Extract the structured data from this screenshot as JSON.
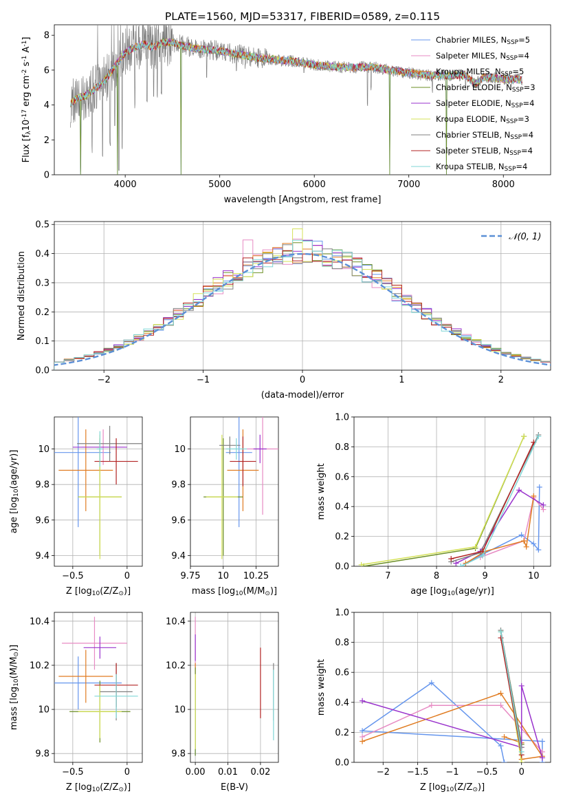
{
  "figure": {
    "title": "PLATE=1560, MJD=53317, FIBERID=0589, z=0.115"
  },
  "colors": {
    "Chabrier MILES": "#6495ed",
    "Salpeter MILES": "#e78ac3",
    "Kroupa MILES": "#e07b20",
    "Chabrier ELODIE": "#6b8e23",
    "Salpeter ELODIE": "#9932cc",
    "Kroupa ELODIE": "#d4e157",
    "Chabrier STELIB": "#808080",
    "Salpeter STELIB": "#b22222",
    "Kroupa STELIB": "#7fd6d6",
    "normal": "#5b8fd6"
  },
  "chart_data": [
    {
      "id": "spectrum",
      "type": "line",
      "xlabel": "wavelength [Angstrom, rest frame]",
      "ylabel": "Flux [f$_\\lambda$10$^{-17}$ erg cm$^{-2}$ s$^{-1}$ A$^{-1}$]",
      "xlim": [
        3250,
        8500
      ],
      "ylim": [
        0,
        8.6
      ],
      "xticks": [
        4000,
        5000,
        6000,
        7000,
        8000
      ],
      "yticks": [
        0,
        2,
        4,
        6,
        8
      ],
      "grid": false,
      "legend_position": "top-right",
      "continuum": [
        [
          3420,
          4.1
        ],
        [
          3500,
          4.4
        ],
        [
          3600,
          4.6
        ],
        [
          3700,
          5.0
        ],
        [
          3800,
          5.5
        ],
        [
          3900,
          6.3
        ],
        [
          4000,
          7.0
        ],
        [
          4100,
          7.3
        ],
        [
          4200,
          7.5
        ],
        [
          4300,
          7.3
        ],
        [
          4400,
          7.6
        ],
        [
          4500,
          7.6
        ],
        [
          4600,
          7.4
        ],
        [
          4800,
          7.2
        ],
        [
          5000,
          7.1
        ],
        [
          5200,
          6.9
        ],
        [
          5400,
          6.7
        ],
        [
          5600,
          6.6
        ],
        [
          5800,
          6.5
        ],
        [
          6000,
          6.3
        ],
        [
          6200,
          6.2
        ],
        [
          6400,
          6.15
        ],
        [
          6600,
          6.2
        ],
        [
          6800,
          6.0
        ],
        [
          7000,
          5.85
        ],
        [
          7200,
          5.7
        ],
        [
          7400,
          5.7
        ],
        [
          7600,
          5.7
        ],
        [
          7700,
          5.2
        ],
        [
          7800,
          5.6
        ],
        [
          8000,
          5.5
        ],
        [
          8200,
          5.45
        ]
      ],
      "observed_dips": [
        [
          3530,
          0.0
        ],
        [
          3650,
          1.2
        ],
        [
          3760,
          0.6
        ],
        [
          3840,
          1.6
        ],
        [
          3890,
          2.4
        ],
        [
          3933,
          0.2
        ],
        [
          3968,
          1.4
        ],
        [
          4102,
          3.6
        ],
        [
          4230,
          3.9
        ],
        [
          4300,
          4.2
        ],
        [
          4340,
          4.4
        ],
        [
          4383,
          4.6
        ],
        [
          4861,
          5.1
        ],
        [
          5176,
          5.6
        ],
        [
          5270,
          6.0
        ],
        [
          5890,
          5.5
        ],
        [
          6563,
          3.6
        ],
        [
          6600,
          4.8
        ],
        [
          7250,
          4.6
        ],
        [
          7600,
          4.8
        ]
      ],
      "model_dips": [
        [
          3530,
          0.0
        ],
        [
          3920,
          0.0
        ],
        [
          4590,
          0.0
        ],
        [
          6800,
          0.0
        ],
        [
          7400,
          0.0
        ]
      ],
      "series": [
        {
          "name": "Chabrier MILES, N$_{SSP}$=5"
        },
        {
          "name": "Salpeter MILES, N$_{SSP}$=4"
        },
        {
          "name": "Kroupa MILES, N$_{SSP}$=5"
        },
        {
          "name": "Chabrier ELODIE, N$_{SSP}$=3"
        },
        {
          "name": "Salpeter ELODIE, N$_{SSP}$=4"
        },
        {
          "name": "Kroupa ELODIE, N$_{SSP}$=3"
        },
        {
          "name": "Chabrier STELIB, N$_{SSP}$=4"
        },
        {
          "name": "Salpeter STELIB, N$_{SSP}$=4"
        },
        {
          "name": "Kroupa STELIB, N$_{SSP}$=4"
        }
      ]
    },
    {
      "id": "residuals",
      "type": "line",
      "xlabel": "(data-model)/error",
      "ylabel": "Normed distribution",
      "xlim": [
        -2.5,
        2.5
      ],
      "ylim": [
        0,
        0.51
      ],
      "xticks": [
        -2,
        -1,
        0,
        1,
        2
      ],
      "yticks": [
        0.0,
        0.1,
        0.2,
        0.3,
        0.4,
        0.5
      ],
      "grid": true,
      "legend_position": "top-right",
      "legend": "$\\mathcal{N}(0, 1)$",
      "bin_width": 0.1,
      "bin_start": -2.5
    },
    {
      "id": "age-Z",
      "type": "scatter",
      "xlabel": "Z [log$_{10}$(Z/Z$_\\odot$)]",
      "ylabel": "age  [log$_{10}$(age/yr)]",
      "xlim": [
        -0.67,
        0.14
      ],
      "ylim": [
        9.34,
        10.18
      ],
      "xticks": [
        -0.5,
        0.0
      ],
      "yticks": [
        9.4,
        9.6,
        9.8,
        10.0
      ],
      "grid": true,
      "points": [
        {
          "model": "Chabrier MILES",
          "x": -0.45,
          "xerr": 0.3,
          "y": 9.98,
          "yerr": 0.42
        },
        {
          "model": "Salpeter MILES",
          "x": -0.22,
          "xerr": 0.2,
          "y": 10.01,
          "yerr": 0.1
        },
        {
          "model": "Kroupa MILES",
          "x": -0.38,
          "xerr": 0.25,
          "y": 9.88,
          "yerr": 0.23
        },
        {
          "model": "Chabrier ELODIE",
          "x": -0.25,
          "xerr": 0.2,
          "y": 9.73,
          "yerr": 0.33
        },
        {
          "model": "Salpeter ELODIE",
          "x": -0.25,
          "xerr": 0.25,
          "y": 10.01,
          "yerr": 0.03
        },
        {
          "model": "Kroupa ELODIE",
          "x": -0.25,
          "xerr": 0.2,
          "y": 9.73,
          "yerr": 0.35
        },
        {
          "model": "Chabrier STELIB",
          "x": -0.16,
          "xerr": 0.3,
          "y": 10.03,
          "yerr": 0.1
        },
        {
          "model": "Salpeter STELIB",
          "x": -0.1,
          "xerr": 0.2,
          "y": 9.93,
          "yerr": 0.13
        },
        {
          "model": "Kroupa STELIB",
          "x": -0.25,
          "xerr": 0.03,
          "y": 10.0,
          "yerr": 0.1
        }
      ]
    },
    {
      "id": "age-mass",
      "type": "scatter",
      "xlabel": "mass [log$_{10}$(M/M$_\\odot$)]",
      "ylabel": "",
      "xlim": [
        9.75,
        10.42
      ],
      "ylim": [
        9.34,
        10.18
      ],
      "xticks": [
        9.75,
        10.0,
        10.25
      ],
      "yticks": [
        9.4,
        9.6,
        9.8,
        10.0
      ],
      "grid": true,
      "points": [
        {
          "model": "Chabrier MILES",
          "x": 10.12,
          "xerr": 0.1,
          "y": 9.98,
          "yerr": 0.42
        },
        {
          "model": "Salpeter MILES",
          "x": 10.3,
          "xerr": 0.12,
          "y": 10.0,
          "yerr": 0.37
        },
        {
          "model": "Kroupa MILES",
          "x": 10.15,
          "xerr": 0.12,
          "y": 9.88,
          "yerr": 0.23
        },
        {
          "model": "Chabrier ELODIE",
          "x": 10.0,
          "xerr": 0.15,
          "y": 9.73,
          "yerr": 0.33
        },
        {
          "model": "Salpeter ELODIE",
          "x": 10.28,
          "xerr": 0.05,
          "y": 10.0,
          "yerr": 0.08
        },
        {
          "model": "Kroupa ELODIE",
          "x": 9.99,
          "xerr": 0.12,
          "y": 9.73,
          "yerr": 0.35
        },
        {
          "model": "Chabrier STELIB",
          "x": 10.05,
          "xerr": 0.08,
          "y": 10.02,
          "yerr": 0.05
        },
        {
          "model": "Salpeter STELIB",
          "x": 10.15,
          "xerr": 0.1,
          "y": 9.93,
          "yerr": 0.14
        },
        {
          "model": "Kroupa STELIB",
          "x": 10.1,
          "xerr": 0.08,
          "y": 10.0,
          "yerr": 0.06
        }
      ]
    },
    {
      "id": "mw-age",
      "type": "line",
      "xlabel": "age  [log$_{10}$(age/yr)]",
      "ylabel": "mass weight",
      "xlim": [
        6.3,
        10.35
      ],
      "ylim": [
        0,
        1.0
      ],
      "xticks": [
        7,
        8,
        9,
        10
      ],
      "yticks": [
        0.0,
        0.2,
        0.4,
        0.6,
        0.8,
        1.0
      ],
      "grid": true,
      "series": [
        {
          "model": "Chabrier MILES",
          "points": [
            [
              8.5,
              0.0
            ],
            [
              8.95,
              0.08
            ],
            [
              9.75,
              0.21
            ],
            [
              10.0,
              0.15
            ],
            [
              10.1,
              0.11
            ],
            [
              10.12,
              0.53
            ]
          ]
        },
        {
          "model": "Salpeter MILES",
          "points": [
            [
              8.9,
              0.06
            ],
            [
              9.8,
              0.17
            ],
            [
              10.0,
              0.46
            ],
            [
              10.2,
              0.38
            ]
          ]
        },
        {
          "model": "Kroupa MILES",
          "points": [
            [
              8.6,
              0.02
            ],
            [
              9.0,
              0.1
            ],
            [
              9.8,
              0.17
            ],
            [
              9.85,
              0.13
            ],
            [
              10.0,
              0.47
            ]
          ]
        },
        {
          "model": "Chabrier ELODIE",
          "points": [
            [
              6.5,
              0.0
            ],
            [
              8.8,
              0.12
            ],
            [
              9.8,
              0.87
            ]
          ]
        },
        {
          "model": "Salpeter ELODIE",
          "points": [
            [
              8.4,
              0.02
            ],
            [
              8.9,
              0.1
            ],
            [
              9.7,
              0.51
            ],
            [
              10.2,
              0.41
            ]
          ]
        },
        {
          "model": "Kroupa ELODIE",
          "points": [
            [
              6.45,
              0.01
            ],
            [
              8.8,
              0.13
            ],
            [
              9.8,
              0.87
            ]
          ]
        },
        {
          "model": "Chabrier STELIB",
          "points": [
            [
              8.3,
              0.03
            ],
            [
              8.9,
              0.09
            ],
            [
              10.1,
              0.88
            ]
          ]
        },
        {
          "model": "Salpeter STELIB",
          "points": [
            [
              8.3,
              0.05
            ],
            [
              8.95,
              0.1
            ],
            [
              10.0,
              0.83
            ]
          ]
        },
        {
          "model": "Kroupa STELIB",
          "points": [
            [
              8.5,
              0.0
            ],
            [
              8.95,
              0.07
            ],
            [
              10.1,
              0.87
            ]
          ]
        }
      ]
    },
    {
      "id": "mass-Z",
      "type": "scatter",
      "xlabel": "Z [log$_{10}$(Z/Z$_\\odot$)]",
      "ylabel": "mass [log$_{10}$(M/M$_\\odot$)]",
      "xlim": [
        -0.67,
        0.14
      ],
      "ylim": [
        9.76,
        10.44
      ],
      "xticks": [
        -0.5,
        0.0
      ],
      "yticks": [
        9.8,
        10.0,
        10.2,
        10.4
      ],
      "grid": true,
      "points": [
        {
          "model": "Chabrier MILES",
          "x": -0.45,
          "xerr": 0.4,
          "y": 10.12,
          "yerr": 0.12
        },
        {
          "model": "Salpeter MILES",
          "x": -0.3,
          "xerr": 0.3,
          "y": 10.3,
          "yerr": 0.12
        },
        {
          "model": "Kroupa MILES",
          "x": -0.38,
          "xerr": 0.25,
          "y": 10.15,
          "yerr": 0.12
        },
        {
          "model": "Chabrier ELODIE",
          "x": -0.25,
          "xerr": 0.28,
          "y": 9.99,
          "yerr": 0.14
        },
        {
          "model": "Salpeter ELODIE",
          "x": -0.25,
          "xerr": 0.15,
          "y": 10.28,
          "yerr": 0.05
        },
        {
          "model": "Kroupa ELODIE",
          "x": -0.25,
          "xerr": 0.2,
          "y": 9.99,
          "yerr": 0.12
        },
        {
          "model": "Chabrier STELIB",
          "x": -0.1,
          "xerr": 0.15,
          "y": 10.08,
          "yerr": 0.13
        },
        {
          "model": "Salpeter STELIB",
          "x": -0.1,
          "xerr": 0.2,
          "y": 10.11,
          "yerr": 0.1
        },
        {
          "model": "Kroupa STELIB",
          "x": -0.1,
          "xerr": 0.2,
          "y": 10.06,
          "yerr": 0.1
        }
      ]
    },
    {
      "id": "mass-ebv",
      "type": "scatter",
      "xlabel": "E(B-V)",
      "ylabel": "",
      "xlim": [
        -0.0015,
        0.0255
      ],
      "ylim": [
        9.76,
        10.44
      ],
      "xticks": [
        0.0,
        0.01,
        0.02
      ],
      "xtick_labels": [
        "0.00",
        "0.01",
        "0.02"
      ],
      "yticks": [
        9.8,
        10.0,
        10.2,
        10.4
      ],
      "grid": true,
      "points": [
        {
          "model": "Chabrier MILES",
          "x": 0.0,
          "y": 9.96,
          "yerr": 0.17
        },
        {
          "model": "Salpeter MILES",
          "x": 0.0,
          "y": 10.3,
          "yerr": 0.12
        },
        {
          "model": "Kroupa MILES",
          "x": 0.0,
          "y": 10.15,
          "yerr": 0.06
        },
        {
          "model": "Chabrier ELODIE",
          "x": 0.0,
          "y": 9.99,
          "yerr": 0.2
        },
        {
          "model": "Salpeter ELODIE",
          "x": 0.0,
          "y": 10.28,
          "yerr": 0.06
        },
        {
          "model": "Kroupa ELODIE",
          "x": 0.0,
          "y": 9.99,
          "yerr": 0.17
        },
        {
          "model": "Chabrier STELIB",
          "x": 0.024,
          "y": 10.08,
          "yerr": 0.13
        },
        {
          "model": "Salpeter STELIB",
          "x": 0.02,
          "y": 10.12,
          "yerr": 0.16
        },
        {
          "model": "Kroupa STELIB",
          "x": 0.024,
          "y": 10.02,
          "yerr": 0.16
        }
      ]
    },
    {
      "id": "mw-Z",
      "type": "line",
      "xlabel": "Z [log$_{10}$(Z/Z$_\\odot$)]",
      "ylabel": "mass weight",
      "xlim": [
        -2.42,
        0.42
      ],
      "ylim": [
        0,
        1.0
      ],
      "xticks": [
        -2.0,
        -1.5,
        -1.0,
        -0.5,
        0.0
      ],
      "yticks": [
        0.0,
        0.2,
        0.4,
        0.6,
        0.8,
        1.0
      ],
      "grid": true,
      "series": [
        {
          "model": "Chabrier MILES",
          "points": [
            [
              -0.25,
              0.0
            ],
            [
              -0.3,
              0.11
            ],
            [
              -1.3,
              0.53
            ],
            [
              -2.3,
              0.21
            ],
            [
              0.3,
              0.14
            ],
            [
              0.3,
              0.0
            ]
          ]
        },
        {
          "model": "Salpeter MILES",
          "points": [
            [
              -2.3,
              0.17
            ],
            [
              -1.3,
              0.38
            ],
            [
              -0.3,
              0.38
            ],
            [
              0.3,
              0.07
            ]
          ]
        },
        {
          "model": "Kroupa MILES",
          "points": [
            [
              -0.25,
              0.17
            ],
            [
              0.0,
              0.13
            ],
            [
              0.0,
              0.02
            ],
            [
              0.3,
              0.04
            ],
            [
              -0.3,
              0.46
            ],
            [
              -2.3,
              0.14
            ]
          ]
        },
        {
          "model": "Chabrier ELODIE",
          "points": [
            [
              0.0,
              0.12
            ],
            [
              -0.3,
              0.87
            ]
          ]
        },
        {
          "model": "Salpeter ELODIE",
          "points": [
            [
              -2.3,
              0.41
            ],
            [
              0.0,
              0.1
            ],
            [
              0.0,
              0.51
            ],
            [
              0.3,
              0.03
            ]
          ]
        },
        {
          "model": "Kroupa ELODIE",
          "points": [
            [
              0.0,
              0.0
            ],
            [
              -0.3,
              0.87
            ]
          ]
        },
        {
          "model": "Chabrier STELIB",
          "points": [
            [
              0.0,
              0.1
            ],
            [
              -0.3,
              0.88
            ]
          ]
        },
        {
          "model": "Salpeter STELIB",
          "points": [
            [
              0.0,
              0.05
            ],
            [
              -0.3,
              0.83
            ]
          ]
        },
        {
          "model": "Kroupa STELIB",
          "points": [
            [
              0.0,
              0.07
            ],
            [
              -0.3,
              0.87
            ]
          ]
        }
      ]
    }
  ]
}
